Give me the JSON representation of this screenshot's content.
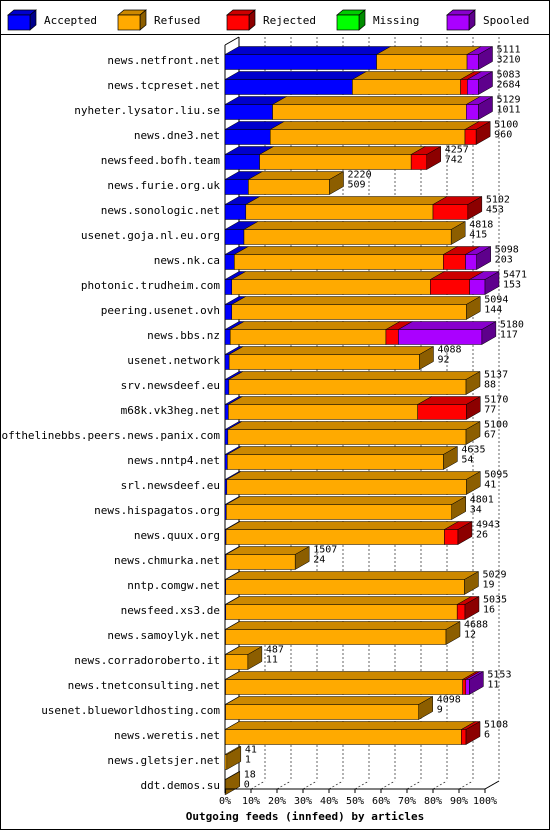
{
  "legend": [
    {
      "key": "accepted",
      "label": "Accepted",
      "color": "#0000ff"
    },
    {
      "key": "refused",
      "label": "Refused",
      "color": "#ffaa00"
    },
    {
      "key": "rejected",
      "label": "Rejected",
      "color": "#ff0000"
    },
    {
      "key": "missing",
      "label": "Missing",
      "color": "#00ff00"
    },
    {
      "key": "spooled",
      "label": "Spooled",
      "color": "#aa00ff"
    }
  ],
  "chart_data": {
    "type": "bar",
    "orientation": "horizontal",
    "stacked": true,
    "title": "Outgoing feeds (innfeed) by articles",
    "xlabel": "Outgoing feeds (innfeed) by articles",
    "x_ticks": [
      "0%",
      "10%",
      "20%",
      "30%",
      "40%",
      "50%",
      "60%",
      "70%",
      "80%",
      "90%",
      "100%"
    ],
    "xlim": [
      0,
      100
    ],
    "grid": true,
    "legend_position": "top",
    "series_order": [
      "accepted",
      "refused",
      "rejected",
      "missing",
      "spooled"
    ],
    "rows": [
      {
        "name": "news.netfront.net",
        "total": "5111",
        "accepted_count": "3210",
        "accepted": 58.3,
        "refused": 34.8,
        "rejected": 0.0,
        "missing": 0,
        "spooled": 4.4
      },
      {
        "name": "news.tcpreset.net",
        "total": "5083",
        "accepted_count": "2684",
        "accepted": 49.0,
        "refused": 41.6,
        "rejected": 2.6,
        "missing": 0,
        "spooled": 4.3
      },
      {
        "name": "nyheter.lysator.liu.se",
        "total": "5129",
        "accepted_count": "1011",
        "accepted": 18.3,
        "refused": 74.5,
        "rejected": 0.0,
        "missing": 0,
        "spooled": 4.7
      },
      {
        "name": "news.dne3.net",
        "total": "5100",
        "accepted_count": "960",
        "accepted": 17.4,
        "refused": 74.9,
        "rejected": 4.3,
        "missing": 0,
        "spooled": 0
      },
      {
        "name": "newsfeed.bofh.team",
        "total": "4257",
        "accepted_count": "742",
        "accepted": 13.3,
        "refused": 58.3,
        "rejected": 6.0,
        "missing": 0,
        "spooled": 0
      },
      {
        "name": "news.furie.org.uk",
        "total": "2220",
        "accepted_count": "509",
        "accepted": 9.0,
        "refused": 31.2,
        "rejected": 0,
        "missing": 0,
        "spooled": 0
      },
      {
        "name": "news.sonologic.net",
        "total": "5102",
        "accepted_count": "453",
        "accepted": 8.0,
        "refused": 72.0,
        "rejected": 13.4,
        "missing": 0,
        "spooled": 0
      },
      {
        "name": "usenet.goja.nl.eu.org",
        "total": "4818",
        "accepted_count": "415",
        "accepted": 7.3,
        "refused": 79.7,
        "rejected": 0,
        "missing": 0,
        "spooled": 0
      },
      {
        "name": "news.nk.ca",
        "total": "5098",
        "accepted_count": "203",
        "accepted": 3.6,
        "refused": 80.4,
        "rejected": 8.5,
        "missing": 0,
        "spooled": 4.3
      },
      {
        "name": "photonic.trudheim.com",
        "total": "5471",
        "accepted_count": "153",
        "accepted": 2.6,
        "refused": 76.4,
        "rejected": 15.1,
        "missing": 0,
        "spooled": 5.9
      },
      {
        "name": "peering.usenet.ovh",
        "total": "5094",
        "accepted_count": "144",
        "accepted": 2.6,
        "refused": 90.2,
        "rejected": 0,
        "missing": 0,
        "spooled": 0
      },
      {
        "name": "news.bbs.nz",
        "total": "5180",
        "accepted_count": "117",
        "accepted": 2.0,
        "refused": 59.9,
        "rejected": 4.8,
        "missing": 0,
        "spooled": 32.1
      },
      {
        "name": "usenet.network",
        "total": "4088",
        "accepted_count": "92",
        "accepted": 1.6,
        "refused": 73.2,
        "rejected": 0,
        "missing": 0,
        "spooled": 0
      },
      {
        "name": "srv.newsdeef.eu",
        "total": "5137",
        "accepted_count": "88",
        "accepted": 1.5,
        "refused": 91.2,
        "rejected": 0,
        "missing": 0,
        "spooled": 0
      },
      {
        "name": "m68k.vk3heg.net",
        "total": "5170",
        "accepted_count": "77",
        "accepted": 1.3,
        "refused": 72.8,
        "rejected": 18.7,
        "missing": 0,
        "spooled": 0
      },
      {
        "name": "endofthelinebbs.peers.news.panix.com",
        "total": "5100",
        "accepted_count": "67",
        "accepted": 1.1,
        "refused": 91.6,
        "rejected": 0,
        "missing": 0,
        "spooled": 0
      },
      {
        "name": "news.nntp4.net",
        "total": "4635",
        "accepted_count": "54",
        "accepted": 0.9,
        "refused": 83.1,
        "rejected": 0,
        "missing": 0,
        "spooled": 0
      },
      {
        "name": "srl.newsdeef.eu",
        "total": "5095",
        "accepted_count": "41",
        "accepted": 0.7,
        "refused": 92.1,
        "rejected": 0,
        "missing": 0,
        "spooled": 0
      },
      {
        "name": "news.hispagatos.org",
        "total": "4801",
        "accepted_count": "34",
        "accepted": 0.5,
        "refused": 86.7,
        "rejected": 0,
        "missing": 0,
        "spooled": 0
      },
      {
        "name": "news.quux.org",
        "total": "4943",
        "accepted_count": "26",
        "accepted": 0.4,
        "refused": 84.0,
        "rejected": 5.2,
        "missing": 0,
        "spooled": 0
      },
      {
        "name": "news.chmurka.net",
        "total": "1507",
        "accepted_count": "24",
        "accepted": 0.4,
        "refused": 26.6,
        "rejected": 0,
        "missing": 0,
        "spooled": 0
      },
      {
        "name": "nntp.comgw.net",
        "total": "5029",
        "accepted_count": "19",
        "accepted": 0.3,
        "refused": 91.8,
        "rejected": 0,
        "missing": 0,
        "spooled": 0
      },
      {
        "name": "newsfeed.xs3.de",
        "total": "5035",
        "accepted_count": "16",
        "accepted": 0.3,
        "refused": 89.0,
        "rejected": 3.0,
        "missing": 0,
        "spooled": 0
      },
      {
        "name": "news.samoylyk.net",
        "total": "4688",
        "accepted_count": "12",
        "accepted": 0.2,
        "refused": 84.8,
        "rejected": 0,
        "missing": 0,
        "spooled": 0
      },
      {
        "name": "news.corradoroberto.it",
        "total": "487",
        "accepted_count": "11",
        "accepted": 0.2,
        "refused": 8.6,
        "rejected": 0,
        "missing": 0,
        "spooled": 0
      },
      {
        "name": "news.tnetconsulting.net",
        "total": "5153",
        "accepted_count": "11",
        "accepted": 0.2,
        "refused": 91.2,
        "rejected": 1.2,
        "missing": 0,
        "spooled": 1.4
      },
      {
        "name": "usenet.blueworldhosting.com",
        "total": "4098",
        "accepted_count": "9",
        "accepted": 0.2,
        "refused": 74.3,
        "rejected": 0,
        "missing": 0,
        "spooled": 0
      },
      {
        "name": "news.weretis.net",
        "total": "5108",
        "accepted_count": "6",
        "accepted": 0.1,
        "refused": 90.8,
        "rejected": 1.8,
        "missing": 0,
        "spooled": 0
      },
      {
        "name": "news.gletsjer.net",
        "total": "41",
        "accepted_count": "1",
        "accepted": 0.0,
        "refused": 0.7,
        "rejected": 0,
        "missing": 0,
        "spooled": 0
      },
      {
        "name": "ddt.demos.su",
        "total": "18",
        "accepted_count": "0",
        "accepted": 0,
        "refused": 0.3,
        "rejected": 0,
        "missing": 0,
        "spooled": 0
      }
    ]
  }
}
